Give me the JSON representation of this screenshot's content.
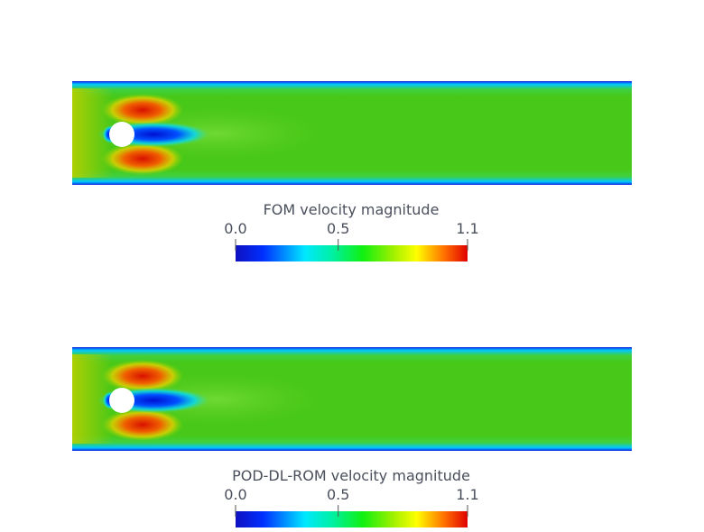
{
  "panels": [
    {
      "colorbar": {
        "title": "FOM velocity magnitude",
        "range": [
          0,
          1.13
        ],
        "ticks": [
          {
            "value": 0,
            "label": "0.0"
          },
          {
            "value": 0.5,
            "label": "0.5"
          },
          {
            "value": 1.13,
            "label": "1.1"
          }
        ]
      }
    },
    {
      "colorbar": {
        "title": "POD-DL-ROM velocity magnitude",
        "range": [
          0,
          1.13
        ],
        "ticks": [
          {
            "value": 0,
            "label": "0.0"
          },
          {
            "value": 0.5,
            "label": "0.5"
          },
          {
            "value": 1.13,
            "label": "1.1"
          }
        ]
      }
    }
  ]
}
